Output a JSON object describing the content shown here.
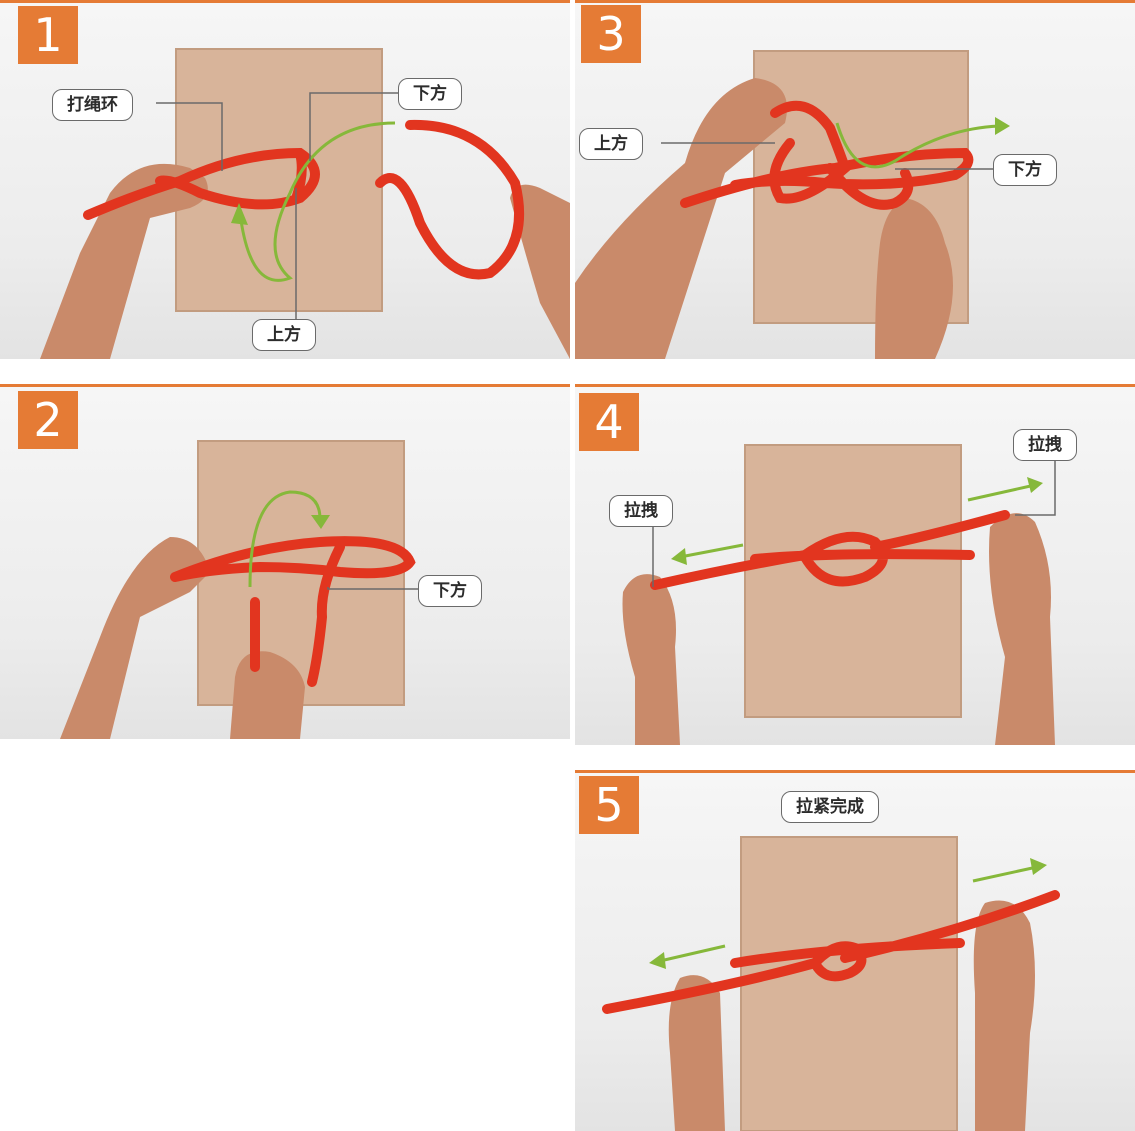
{
  "colors": {
    "accent": "#e57b35",
    "rope": "#e2351f",
    "arrow": "#86b83a",
    "box": "#d8b49a",
    "skin": "#c98a6a"
  },
  "panels": [
    {
      "step": "1",
      "labels": {
        "make_loop": "打绳环",
        "below": "下方",
        "above": "上方"
      }
    },
    {
      "step": "2",
      "labels": {
        "below": "下方"
      }
    },
    {
      "step": "3",
      "labels": {
        "above": "上方",
        "below": "下方"
      }
    },
    {
      "step": "4",
      "labels": {
        "pull_left": "拉拽",
        "pull_right": "拉拽"
      }
    },
    {
      "step": "5",
      "labels": {
        "tighten_done": "拉紧完成"
      }
    }
  ]
}
